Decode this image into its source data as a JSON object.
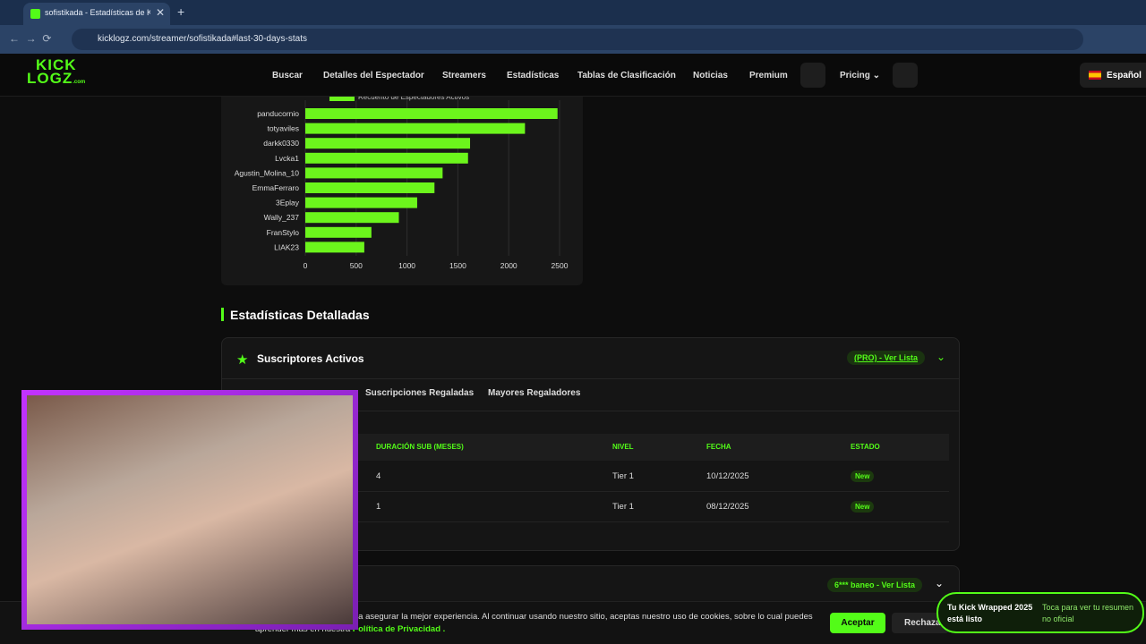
{
  "browser": {
    "tab_title": "sofistikada - Estadísticas de Kick",
    "url": "kicklogz.com/streamer/sofistikada#last-30-days-stats"
  },
  "nav": {
    "logo_top": "KICK",
    "logo_bottom": "LOGZ",
    "logo_suffix": ".com",
    "links": [
      "Buscar",
      "Detalles del Espectador",
      "Streamers",
      "Estadísticas",
      "Tablas de Clasificación",
      "Noticias",
      "Premium"
    ],
    "pricing": "Pricing",
    "language": "Español"
  },
  "chart_data": {
    "type": "bar",
    "orientation": "horizontal",
    "categories": [
      "panducornio",
      "totyaviles",
      "darkk0330",
      "Lvcka1",
      "Agustin_Molina_10",
      "EmmaFerraro",
      "3Eplay",
      "Wally_237",
      "FranStylo",
      "LIAK23"
    ],
    "series": [
      {
        "name": "Recuento de Espectadores Activos",
        "color": "#6cf51c",
        "values": [
          2480,
          2160,
          1620,
          1600,
          1350,
          1270,
          1100,
          920,
          650,
          580
        ]
      }
    ],
    "xlim": [
      0,
      2500
    ],
    "xticks": [
      0,
      500,
      1000,
      1500,
      2000,
      2500
    ],
    "grid": true
  },
  "section": {
    "title": "Estadísticas Detalladas",
    "card": {
      "title": "Suscriptores Activos",
      "action": "(PRO) - Ver Lista",
      "tabs": [
        "Suscripciones Regaladas",
        "Mayores Regaladores"
      ],
      "table": {
        "headers": [
          "DURACIÓN SUB (MESES)",
          "NIVEL",
          "FECHA",
          "ESTADO"
        ],
        "rows": [
          [
            "4",
            "Tier 1",
            "10/12/2025",
            "New"
          ],
          [
            "1",
            "Tier 1",
            "08/12/2025",
            "New"
          ]
        ]
      }
    },
    "card2_action": "6*** baneo - Ver Lista"
  },
  "cookie": {
    "text": "ra asegurar la mejor experiencia. Al continuar usando nuestro sitio, aceptas nuestro uso de cookies, sobre lo cual puedes",
    "text2": "aprender más en nuestra",
    "link": "Política de Privacidad .",
    "accept": "Aceptar",
    "reject": "Rechazar"
  },
  "toast": {
    "title": "Tu Kick Wrapped 2025 está listo",
    "text": "Toca para ver tu resumen no oficial"
  }
}
